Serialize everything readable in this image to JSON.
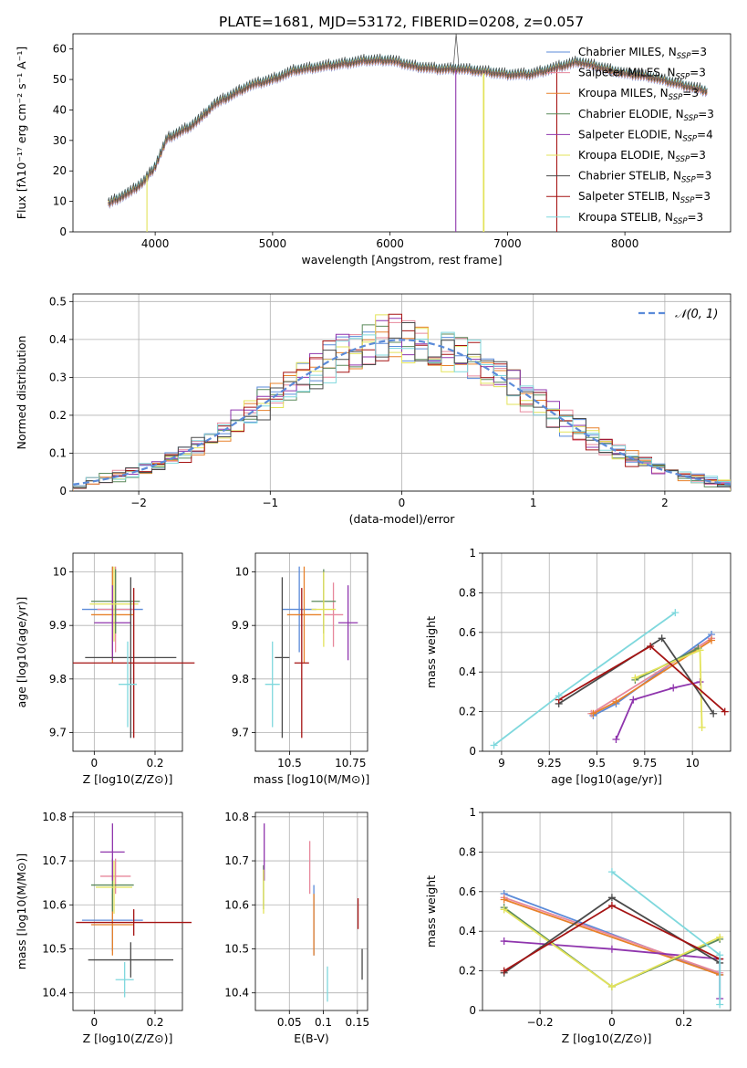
{
  "figure": {
    "title": "PLATE=1681, MJD=53172, FIBERID=0208, z=0.057"
  },
  "colors": [
    "#5b8bd9",
    "#e7889c",
    "#e8812a",
    "#5b8a5b",
    "#8f35ad",
    "#e3e35a",
    "#4a4a4a",
    "#a51313",
    "#7fd8dd"
  ],
  "legend_spectrum": [
    "Chabrier MILES, N_SSP=3",
    "Salpeter MILES, N_SSP=3",
    "Kroupa MILES, N_SSP=3",
    "Chabrier ELODIE, N_SSP=3",
    "Salpeter ELODIE, N_SSP=4",
    "Kroupa ELODIE, N_SSP=3",
    "Chabrier STELIB, N_SSP=3",
    "Salpeter STELIB, N_SSP=3",
    "Kroupa STELIB, N_SSP=3"
  ],
  "legend_residual": "𝒩(0, 1)",
  "chart_data": [
    {
      "id": "spectrum",
      "type": "line",
      "title": "PLATE=1681, MJD=53172, FIBERID=0208, z=0.057",
      "xlabel": "wavelength [Angstrom, rest frame]",
      "ylabel": "Flux [fλ10⁻¹⁷ erg cm⁻² s⁻¹ A⁻¹]",
      "xlim": [
        3300,
        8900
      ],
      "ylim": [
        0,
        65
      ],
      "xticks": [
        4000,
        5000,
        6000,
        7000,
        8000
      ],
      "yticks": [
        0,
        10,
        20,
        30,
        40,
        50,
        60
      ],
      "grid": false,
      "legend": "top-right",
      "continuum": {
        "x": [
          3600,
          3800,
          3900,
          4000,
          4100,
          4200,
          4300,
          4400,
          4500,
          4600,
          4800,
          5000,
          5200,
          5400,
          5600,
          5800,
          6000,
          6200,
          6400,
          6600,
          6800,
          7000,
          7200,
          7400,
          7600,
          7800,
          8000,
          8200,
          8400,
          8700
        ],
        "y": [
          10,
          14,
          17,
          22,
          31,
          33,
          35,
          38,
          42,
          44,
          48,
          50,
          53,
          54,
          55,
          56,
          56,
          54,
          53,
          53,
          52,
          51,
          51,
          53,
          55,
          53,
          51,
          50,
          48,
          45
        ]
      },
      "drops": [
        {
          "series": 5,
          "x": 3930,
          "ymin": 0
        },
        {
          "series": 5,
          "x": 6795,
          "ymin": 0
        },
        {
          "series": 5,
          "x": 6800,
          "ymin": 0
        },
        {
          "series": 7,
          "x": 7420,
          "ymin": 0
        },
        {
          "series": 4,
          "x": 6560,
          "ymin": 0
        }
      ],
      "peaks": [
        {
          "series": 6,
          "x": 6563,
          "y": 65
        }
      ]
    },
    {
      "id": "residuals",
      "type": "histogram",
      "xlabel": "(data-model)/error",
      "ylabel": "Normed distribution",
      "xlim": [
        -2.5,
        2.5
      ],
      "ylim": [
        0,
        0.52
      ],
      "xticks": [
        -2,
        -1,
        0,
        1,
        2
      ],
      "yticks": [
        0,
        0.1,
        0.2,
        0.3,
        0.4,
        0.5
      ],
      "grid": true,
      "legend": "top-right",
      "bin_width": 0.1
    },
    {
      "id": "age-vs-Z",
      "type": "scatter",
      "xlabel": "Z [log10(Z/Z⊙)]",
      "ylabel": "age  [log10(age/yr)]",
      "xlim": [
        -0.07,
        0.29
      ],
      "ylim": [
        9.665,
        10.035
      ],
      "xticks": [
        0.0,
        0.2
      ],
      "yticks": [
        9.7,
        9.8,
        9.9,
        10.0
      ],
      "grid": true,
      "points": [
        {
          "x": 0.06,
          "xerr": 0.1,
          "y": 9.93,
          "yerr": 0.08
        },
        {
          "x": 0.07,
          "xerr": 0.06,
          "y": 9.93,
          "yerr": 0.08
        },
        {
          "x": 0.06,
          "xerr": 0.07,
          "y": 9.92,
          "yerr": 0.09
        },
        {
          "x": 0.07,
          "xerr": 0.08,
          "y": 9.945,
          "yerr": 0.06
        },
        {
          "x": 0.06,
          "xerr": 0.06,
          "y": 9.905,
          "yerr": 0.07
        },
        {
          "x": 0.065,
          "xerr": 0.08,
          "y": 9.94,
          "yerr": 0.07
        },
        {
          "x": 0.12,
          "xerr": 0.15,
          "y": 9.84,
          "yerr": 0.15
        },
        {
          "x": 0.13,
          "xerr": 0.2,
          "y": 9.83,
          "yerr": 0.14
        },
        {
          "x": 0.11,
          "xerr": 0.03,
          "y": 9.79,
          "yerr": 0.08
        }
      ]
    },
    {
      "id": "age-vs-mass",
      "type": "scatter",
      "xlabel": "mass [log10(M/M⊙)]",
      "ylabel": "",
      "xlim": [
        10.36,
        10.82
      ],
      "ylim": [
        9.665,
        10.035
      ],
      "xticks": [
        10.5,
        10.75
      ],
      "yticks": [
        9.7,
        9.8,
        9.9,
        10.0
      ],
      "grid": true,
      "points": [
        {
          "x": 10.54,
          "xerr": 0.07,
          "y": 9.93,
          "yerr": 0.08
        },
        {
          "x": 10.68,
          "xerr": 0.04,
          "y": 9.92,
          "yerr": 0.06
        },
        {
          "x": 10.56,
          "xerr": 0.07,
          "y": 9.92,
          "yerr": 0.09
        },
        {
          "x": 10.64,
          "xerr": 0.05,
          "y": 9.945,
          "yerr": 0.06
        },
        {
          "x": 10.74,
          "xerr": 0.04,
          "y": 9.905,
          "yerr": 0.07
        },
        {
          "x": 10.64,
          "xerr": 0.05,
          "y": 9.93,
          "yerr": 0.07
        },
        {
          "x": 10.47,
          "xerr": 0.03,
          "y": 9.84,
          "yerr": 0.15
        },
        {
          "x": 10.55,
          "xerr": 0.03,
          "y": 9.83,
          "yerr": 0.14
        },
        {
          "x": 10.43,
          "xerr": 0.03,
          "y": 9.79,
          "yerr": 0.08
        }
      ]
    },
    {
      "id": "weight-vs-age",
      "type": "line",
      "xlabel": "age  [log10(age/yr)]",
      "ylabel": "mass weight",
      "xlim": [
        8.9,
        10.2
      ],
      "ylim": [
        0,
        1
      ],
      "xticks": [
        9.0,
        9.25,
        9.5,
        9.75,
        10.0
      ],
      "yticks": [
        0.0,
        0.2,
        0.4,
        0.6,
        0.8,
        1.0
      ],
      "grid": true,
      "series": [
        {
          "x": [
            9.48,
            9.6,
            10.1
          ],
          "y": [
            0.18,
            0.24,
            0.59
          ]
        },
        {
          "x": [
            9.47,
            10.1
          ],
          "y": [
            0.19,
            0.57
          ]
        },
        {
          "x": [
            9.48,
            9.6,
            10.1
          ],
          "y": [
            0.19,
            0.25,
            0.56
          ]
        },
        {
          "x": [
            9.7,
            10.03
          ],
          "y": [
            0.36,
            0.52
          ]
        },
        {
          "x": [
            9.6,
            9.69,
            9.9,
            10.04
          ],
          "y": [
            0.06,
            0.26,
            0.32,
            0.35
          ]
        },
        {
          "x": [
            9.7,
            10.04,
            10.05
          ],
          "y": [
            0.37,
            0.51,
            0.12
          ]
        },
        {
          "x": [
            9.3,
            9.84,
            10.11
          ],
          "y": [
            0.24,
            0.57,
            0.19
          ]
        },
        {
          "x": [
            9.3,
            9.78,
            10.17
          ],
          "y": [
            0.26,
            0.53,
            0.2
          ]
        },
        {
          "x": [
            8.96,
            9.3,
            9.91
          ],
          "y": [
            0.03,
            0.28,
            0.7
          ]
        }
      ]
    },
    {
      "id": "mass-vs-Z",
      "type": "scatter",
      "xlabel": "Z [log10(Z/Z⊙)]",
      "ylabel": "mass [log10(M/M⊙)]",
      "xlim": [
        -0.07,
        0.29
      ],
      "ylim": [
        10.36,
        10.81
      ],
      "xticks": [
        0.0,
        0.2
      ],
      "yticks": [
        10.4,
        10.5,
        10.6,
        10.7,
        10.8
      ],
      "grid": true,
      "points": [
        {
          "x": 0.06,
          "xerr": 0.1,
          "y": 10.565,
          "yerr": 0.07
        },
        {
          "x": 0.07,
          "xerr": 0.05,
          "y": 10.665,
          "yerr": 0.04
        },
        {
          "x": 0.06,
          "xerr": 0.07,
          "y": 10.555,
          "yerr": 0.07
        },
        {
          "x": 0.06,
          "xerr": 0.07,
          "y": 10.645,
          "yerr": 0.06
        },
        {
          "x": 0.06,
          "xerr": 0.04,
          "y": 10.72,
          "yerr": 0.065
        },
        {
          "x": 0.065,
          "xerr": 0.06,
          "y": 10.64,
          "yerr": 0.06
        },
        {
          "x": 0.12,
          "xerr": 0.14,
          "y": 10.475,
          "yerr": 0.04
        },
        {
          "x": 0.13,
          "xerr": 0.19,
          "y": 10.56,
          "yerr": 0.03
        },
        {
          "x": 0.1,
          "xerr": 0.03,
          "y": 10.43,
          "yerr": 0.04
        }
      ]
    },
    {
      "id": "mass-vs-EBV",
      "type": "scatter",
      "xlabel": "E(B-V)",
      "ylabel": "",
      "xlim": [
        0.0,
        0.165
      ],
      "ylim": [
        10.36,
        10.81
      ],
      "xticks": [
        0.05,
        0.1,
        0.15
      ],
      "yticks": [
        10.4,
        10.5,
        10.6,
        10.7,
        10.8
      ],
      "grid": true,
      "points": [
        {
          "x": 0.086,
          "y": 10.565,
          "yerr": 0.08
        },
        {
          "x": 0.08,
          "y": 10.685,
          "yerr": 0.06
        },
        {
          "x": 0.086,
          "y": 10.555,
          "yerr": 0.07
        },
        {
          "x": 0.012,
          "y": 10.64,
          "yerr": 0.05
        },
        {
          "x": 0.013,
          "y": 10.72,
          "yerr": 0.065
        },
        {
          "x": 0.012,
          "y": 10.63,
          "yerr": 0.05
        },
        {
          "x": 0.157,
          "y": 10.465,
          "yerr": 0.035
        },
        {
          "x": 0.151,
          "y": 10.58,
          "yerr": 0.035
        },
        {
          "x": 0.106,
          "y": 10.42,
          "yerr": 0.04
        }
      ]
    },
    {
      "id": "weight-vs-Z",
      "type": "line",
      "xlabel": "Z [log10(Z/Z⊙)]",
      "ylabel": "mass weight",
      "xlim": [
        -0.36,
        0.33
      ],
      "ylim": [
        0,
        1
      ],
      "xticks": [
        -0.2,
        0.0,
        0.2
      ],
      "yticks": [
        0.0,
        0.2,
        0.4,
        0.6,
        0.8,
        1.0
      ],
      "grid": true,
      "series": [
        {
          "x": [
            -0.3,
            0.3
          ],
          "y": [
            0.59,
            0.18
          ]
        },
        {
          "x": [
            -0.3,
            0.3
          ],
          "y": [
            0.57,
            0.19
          ]
        },
        {
          "x": [
            -0.3,
            0.3
          ],
          "y": [
            0.56,
            0.18
          ]
        },
        {
          "x": [
            -0.3,
            0.0,
            0.3
          ],
          "y": [
            0.52,
            0.12,
            0.36
          ]
        },
        {
          "x": [
            -0.3,
            0.0,
            0.3,
            0.3
          ],
          "y": [
            0.35,
            0.31,
            0.26,
            0.06
          ]
        },
        {
          "x": [
            -0.3,
            0.0,
            0.3
          ],
          "y": [
            0.51,
            0.12,
            0.37
          ]
        },
        {
          "x": [
            -0.3,
            0.0,
            0.3
          ],
          "y": [
            0.19,
            0.57,
            0.24
          ]
        },
        {
          "x": [
            -0.3,
            0.0,
            0.3
          ],
          "y": [
            0.2,
            0.53,
            0.26
          ]
        },
        {
          "x": [
            0.0,
            0.3,
            0.3
          ],
          "y": [
            0.7,
            0.28,
            0.03
          ]
        }
      ]
    }
  ]
}
